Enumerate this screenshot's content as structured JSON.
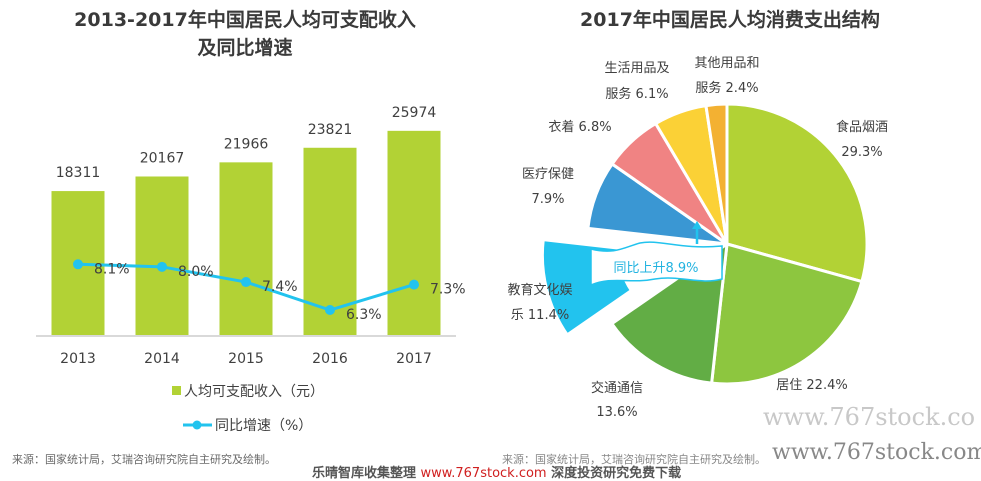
{
  "chart_data": [
    {
      "type": "bar",
      "title": "2013-2017年中国居民人均可支配收入及同比增速",
      "title_lines": [
        "2013-2017年中国居民人均可支配收入",
        "及同比增速"
      ],
      "categories": [
        "2013",
        "2014",
        "2015",
        "2016",
        "2017"
      ],
      "series": [
        {
          "name": "人均可支配收入（元）",
          "kind": "bar",
          "color": "#b2d235",
          "values": [
            18311,
            20167,
            21966,
            23821,
            25974
          ],
          "labels": [
            "18311",
            "20167",
            "21966",
            "23821",
            "25974"
          ]
        },
        {
          "name": "同比增速（%）",
          "kind": "line",
          "color": "#22c3ee",
          "values": [
            8.1,
            8.0,
            7.4,
            6.3,
            7.3
          ],
          "labels": [
            "8.1%",
            "8.0%",
            "7.4%",
            "6.3%",
            "7.3%"
          ]
        }
      ],
      "legend": [
        "人均可支配收入（元）",
        "同比增速（%）"
      ],
      "legend_position": "bottom",
      "grid": false,
      "source": "来源：国家统计局，艾瑞咨询研究院自主研究及绘制。"
    },
    {
      "type": "pie",
      "title": "2017年中国居民人均消费支出结构",
      "slices": [
        {
          "name": "食品烟酒",
          "value": 29.3,
          "label_lines": [
            "食品烟酒",
            "29.3%"
          ],
          "color": "#b2d235"
        },
        {
          "name": "居住",
          "value": 22.4,
          "label_lines": [
            "居住 22.4%"
          ],
          "color": "#8dc63f"
        },
        {
          "name": "交通通信",
          "value": 13.6,
          "label_lines": [
            "交通通信",
            "13.6%"
          ],
          "color": "#62ad45"
        },
        {
          "name": "教育文化娱乐",
          "value": 11.4,
          "label_lines": [
            "教育文化娱",
            "乐 11.4%"
          ],
          "color": "#22c3ee",
          "exploded": true
        },
        {
          "name": "医疗保健",
          "value": 7.9,
          "label_lines": [
            "医疗保健",
            "7.9%"
          ],
          "color": "#3a97d3"
        },
        {
          "name": "衣着",
          "value": 6.8,
          "label_lines": [
            "衣着 6.8%"
          ],
          "color": "#f08383"
        },
        {
          "name": "生活用品及服务",
          "value": 6.1,
          "label_lines": [
            "生活用品及",
            "服务 6.1%"
          ],
          "color": "#fbd136"
        },
        {
          "name": "其他用品和服务",
          "value": 2.4,
          "label_lines": [
            "其他用品和",
            "服务 2.4%"
          ],
          "color": "#f3b132"
        }
      ],
      "annotation": "同比上升8.9%",
      "source": "来源：国家统计局，艾瑞咨询研究院自主研究及绘制。"
    }
  ],
  "watermarks": {
    "site_light": "www.767stock.co",
    "site_dark": "www.767stock.com",
    "strip_prefix": "乐晴智库收集整理",
    "strip_url": "www.767stock.com",
    "strip_suffix": "深度投资研究免费下载"
  }
}
